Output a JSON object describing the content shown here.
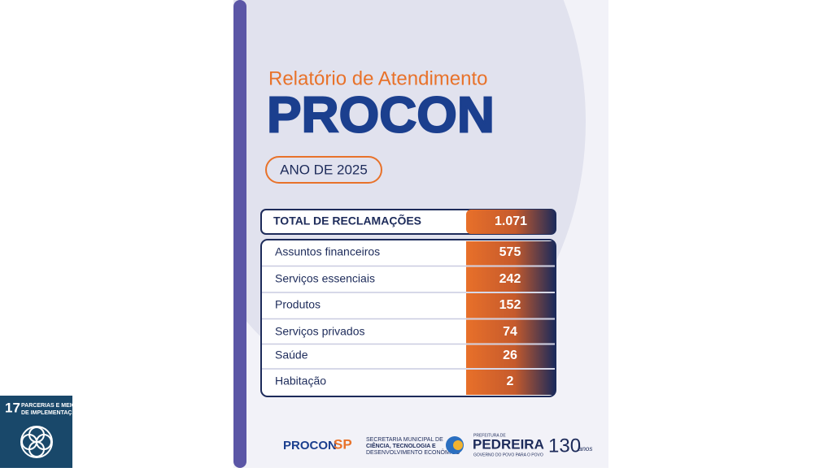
{
  "header": {
    "subtitle": "Relatório de Atendimento",
    "title": "PROCON",
    "year": "ANO DE 2025"
  },
  "total": {
    "label": "TOTAL DE RECLAMAÇÕES",
    "value": "1.071"
  },
  "table": {
    "rows": [
      [
        "Assuntos financeiros",
        575
      ],
      [
        "Serviços essenciais",
        242
      ],
      [
        "Produtos",
        152
      ],
      [
        "Serviços privados",
        74
      ],
      [
        "Saúde",
        26
      ],
      [
        "Habitação",
        2
      ]
    ]
  },
  "footer": {
    "procon": "PROCON",
    "sp": "SP",
    "secretaria": [
      "SECRETARIA MUNICIPAL DE",
      "CIÊNCIA, TECNOLOGIA E",
      "DESENVOLVIMENTO ECONÔMICO"
    ],
    "prefeitura": "PREFEITURA DE",
    "city": "PEDREIRA",
    "slogan": "GOVERNO DO POVO PARA O POVO",
    "anniversary": "130",
    "anniversary_word": "anos"
  },
  "badge": {
    "number": "17",
    "label": [
      "PARCERIAS E MEIOS",
      "DE IMPLEMENTAÇÃO"
    ]
  }
}
